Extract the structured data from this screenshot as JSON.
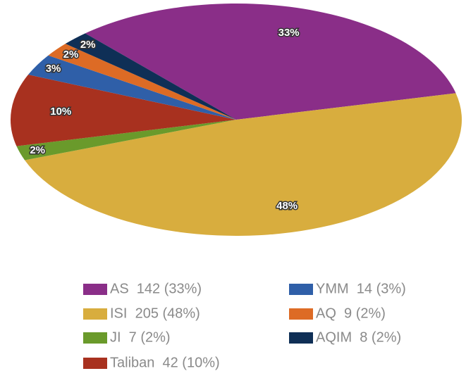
{
  "chart_data": {
    "type": "pie",
    "categories": [
      "AS",
      "ISI",
      "JI",
      "Taliban",
      "YMM",
      "AQ",
      "AQIM"
    ],
    "values": [
      33,
      48,
      2,
      10,
      3,
      2,
      2
    ],
    "value_labels": [
      "33%",
      "48%",
      "2%",
      "10%",
      "3%",
      "2%",
      "2%"
    ],
    "legend_labels": [
      "AS  142 (33%)",
      "ISI  205 (48%)",
      "JI  7 (2%)",
      "Taliban  42 (10%)",
      "YMM  14 (3%)",
      "AQ  9 (2%)",
      "AQIM  8 (2%)"
    ],
    "colors": [
      "#8a2e88",
      "#d8ad3e",
      "#6a9a2b",
      "#a8311f",
      "#2f5fa8",
      "#dd6b25",
      "#0f2f56"
    ]
  }
}
